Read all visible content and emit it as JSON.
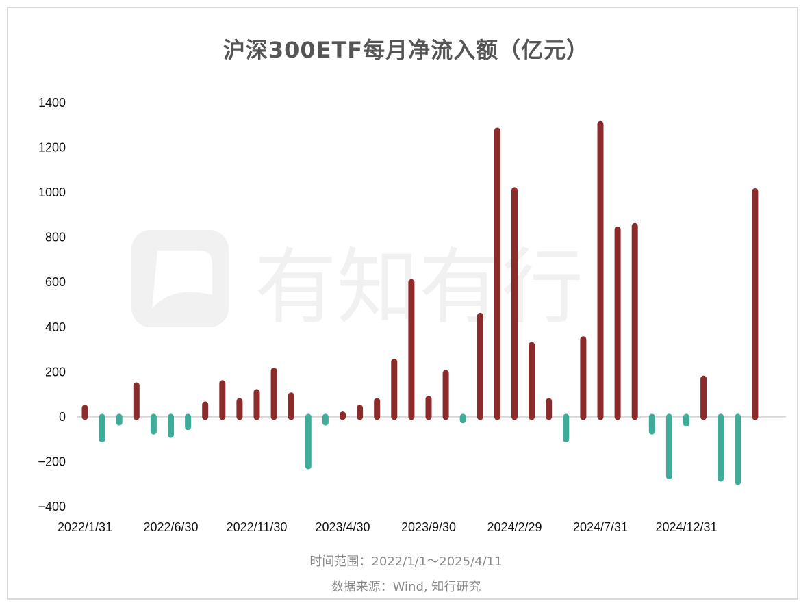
{
  "title": "沪深300ETF每月净流入额（亿元）",
  "footer": {
    "range": "时间范围：2022/1/1～2025/4/11",
    "source": "数据来源：Wind, 知行研究"
  },
  "watermark": {
    "text": "有知有行"
  },
  "colors": {
    "positive": "#8b2b2b",
    "negative": "#3fac9a",
    "baseline": "#cfcfcf"
  },
  "chart_data": {
    "type": "bar",
    "title": "沪深300ETF每月净流入额（亿元）",
    "xlabel": "",
    "ylabel": "",
    "ylim": [
      -400,
      1400
    ],
    "yticks": [
      -400,
      -200,
      0,
      200,
      400,
      600,
      800,
      1000,
      1200,
      1400
    ],
    "x_tick_labels": [
      "2022/1/31",
      "2022/6/30",
      "2022/11/30",
      "2023/4/30",
      "2023/9/30",
      "2024/2/29",
      "2024/7/31",
      "2024/12/31"
    ],
    "categories": [
      "2022/1/31",
      "2022/2/28",
      "2022/3/31",
      "2022/4/30",
      "2022/5/31",
      "2022/6/30",
      "2022/7/31",
      "2022/8/31",
      "2022/9/30",
      "2022/10/31",
      "2022/11/30",
      "2022/12/31",
      "2023/1/31",
      "2023/2/28",
      "2023/3/31",
      "2023/4/30",
      "2023/5/31",
      "2023/6/30",
      "2023/7/31",
      "2023/8/31",
      "2023/9/30",
      "2023/10/31",
      "2023/11/30",
      "2023/12/31",
      "2024/1/31",
      "2024/2/29",
      "2024/3/31",
      "2024/4/30",
      "2024/5/31",
      "2024/6/30",
      "2024/7/31",
      "2024/8/31",
      "2024/9/30",
      "2024/10/31",
      "2024/11/30",
      "2024/12/31",
      "2025/1/31",
      "2025/2/28",
      "2025/3/31",
      "2025/4/30"
    ],
    "values": [
      40,
      -100,
      -25,
      140,
      -65,
      -80,
      -45,
      55,
      150,
      70,
      110,
      205,
      95,
      -220,
      -25,
      10,
      40,
      70,
      245,
      600,
      80,
      195,
      -15,
      450,
      1275,
      1010,
      320,
      70,
      -100,
      345,
      1305,
      835,
      850,
      -65,
      -265,
      -30,
      170,
      -275,
      -290,
      1005
    ],
    "grid": false,
    "legend": "none"
  }
}
